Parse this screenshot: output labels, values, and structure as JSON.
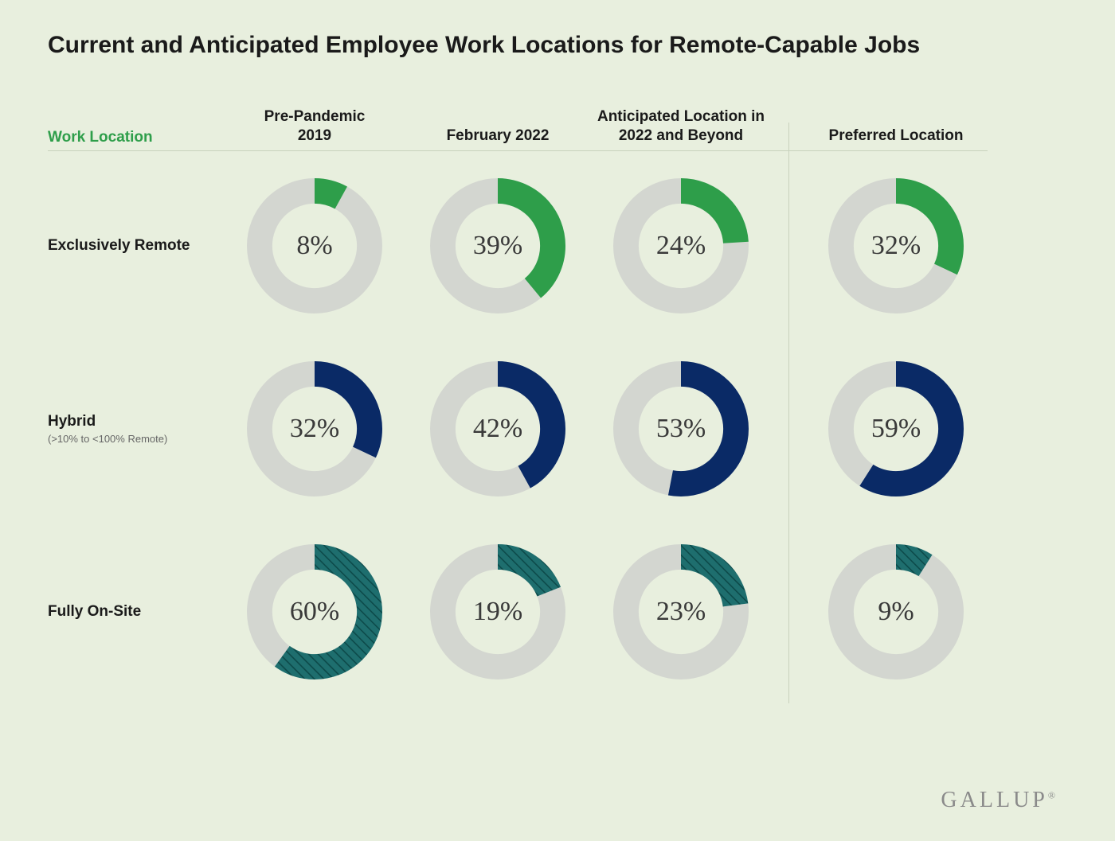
{
  "title": "Current and Anticipated Employee Work Locations for Remote-Capable Jobs",
  "work_location_header": "Work Location",
  "columns": [
    {
      "label": "Pre-Pandemic\n2019"
    },
    {
      "label": "February 2022"
    },
    {
      "label": "Anticipated Location in\n2022 and Beyond"
    },
    {
      "label": "Preferred Location"
    }
  ],
  "rows": [
    {
      "label": "Exclusively Remote",
      "sublabel": "",
      "color": "#2e9e4a",
      "pattern": "solid",
      "values": [
        8,
        39,
        24,
        32
      ]
    },
    {
      "label": "Hybrid",
      "sublabel": "(>10% to <100% Remote)",
      "color": "#0a2a66",
      "pattern": "solid",
      "values": [
        32,
        42,
        53,
        59
      ]
    },
    {
      "label": "Fully On-Site",
      "sublabel": "",
      "color": "#1e6e6e",
      "pattern": "hatch",
      "values": [
        60,
        19,
        23,
        9
      ]
    }
  ],
  "donut": {
    "outer_radius": 80,
    "stroke_width": 30,
    "track_color": "#d3d6d0",
    "label_fontsize": 34,
    "label_color": "#3a3a3a"
  },
  "styling": {
    "background_color": "#e8efde",
    "title_fontsize": 30,
    "title_color": "#1a1a1a",
    "header_fontsize": 19,
    "header_color": "#1a1a1a",
    "work_location_color": "#2e9e4a",
    "row_label_fontsize": 19,
    "row_sublabel_fontsize": 13,
    "row_sublabel_color": "#666666",
    "divider_color": "#c8d2bd",
    "logo_color": "#8a8a8a",
    "logo_fontsize": 28,
    "font_family_headers": "sans-serif",
    "font_family_values": "Georgia, serif"
  },
  "logo": "GALLUP"
}
